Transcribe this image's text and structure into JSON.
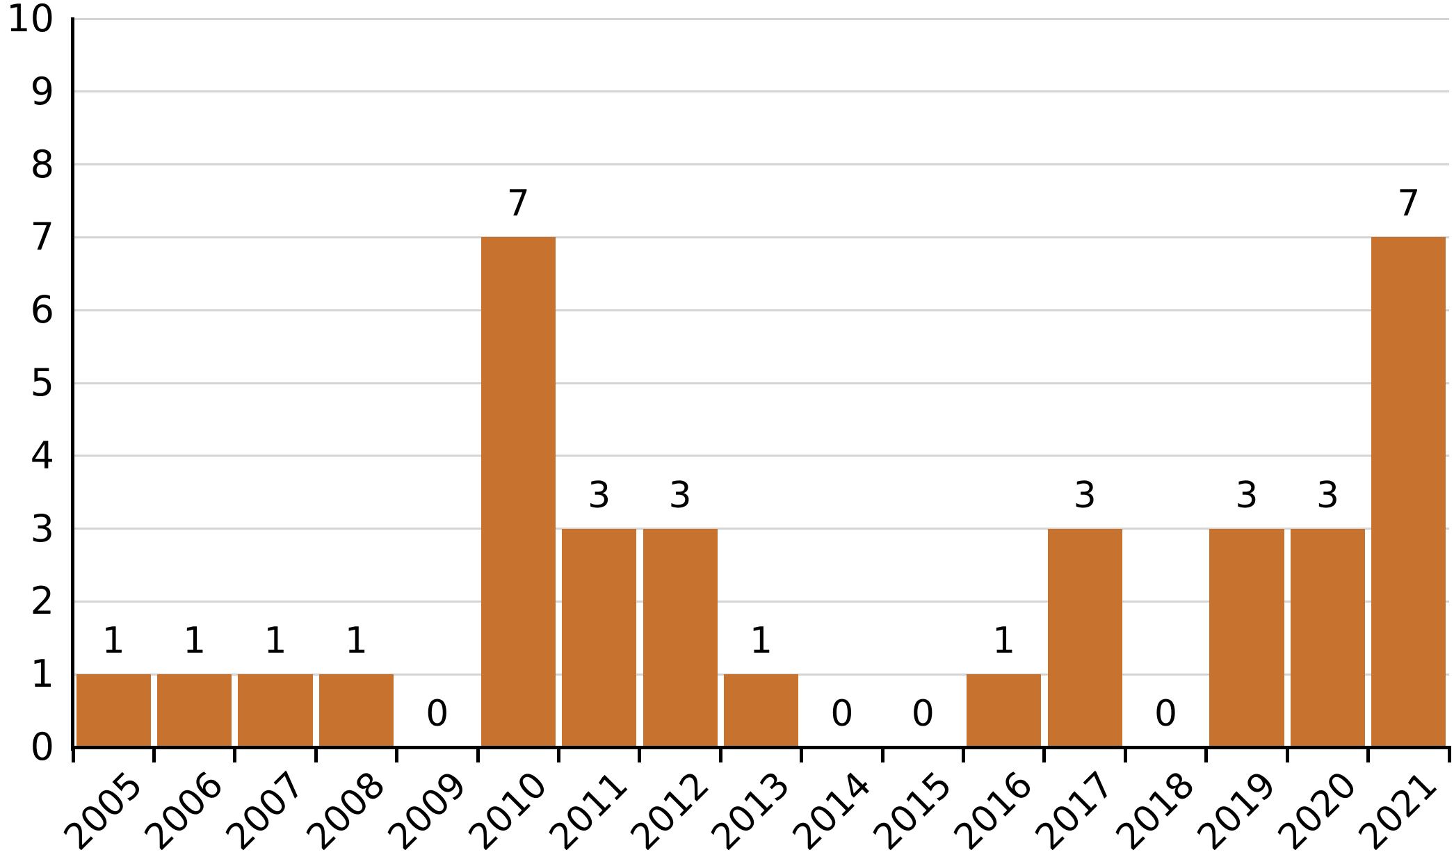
{
  "chart_data": {
    "type": "bar",
    "title": "",
    "xlabel": "",
    "ylabel": "",
    "categories": [
      "2005",
      "2006",
      "2007",
      "2008",
      "2009",
      "2010",
      "2011",
      "2012",
      "2013",
      "2014",
      "2015",
      "2016",
      "2017",
      "2018",
      "2019",
      "2020",
      "2021"
    ],
    "values": [
      1,
      1,
      1,
      1,
      0,
      7,
      3,
      3,
      1,
      0,
      0,
      1,
      3,
      0,
      3,
      3,
      7
    ],
    "data_labels": [
      "1",
      "1",
      "1",
      "1",
      "0",
      "7",
      "3",
      "3",
      "1",
      "0",
      "0",
      "1",
      "3",
      "0",
      "3",
      "3",
      "7"
    ],
    "ylim": [
      0,
      10
    ],
    "yticks": [
      0,
      1,
      2,
      3,
      4,
      5,
      6,
      7,
      8,
      9,
      10
    ],
    "grid": true,
    "legend": false,
    "colors": {
      "bar": "#C7722E",
      "gridline": "#D4D4D4",
      "axis": "#000000",
      "text": "#000000"
    }
  }
}
